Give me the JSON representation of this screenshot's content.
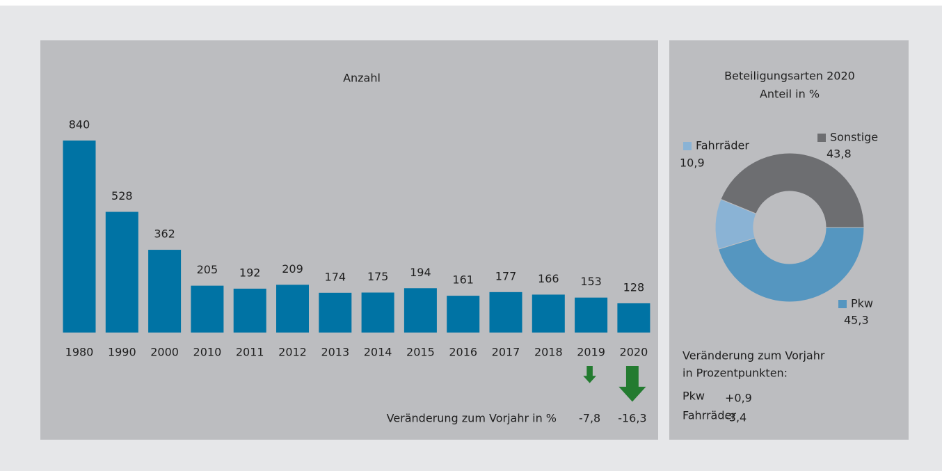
{
  "chart_data": [
    {
      "type": "bar",
      "title": "Anzahl",
      "categories": [
        "1980",
        "1990",
        "2000",
        "2010",
        "2011",
        "2012",
        "2013",
        "2014",
        "2015",
        "2016",
        "2017",
        "2018",
        "2019",
        "2020"
      ],
      "values": [
        840,
        528,
        362,
        205,
        192,
        209,
        174,
        175,
        194,
        161,
        177,
        166,
        153,
        128
      ],
      "color": "#0073a4",
      "change": {
        "label": "Veränderung zum Vorjahr in %",
        "values": [
          -7.8,
          -16.3
        ],
        "value_labels": [
          "-7,8",
          "-16,3"
        ],
        "color": "#237b30"
      }
    },
    {
      "type": "donut",
      "title": "Beteiligungsarten 2020",
      "subtitle": "Anteil in %",
      "categories": [
        "Pkw",
        "Fahrräder",
        "Sonstige"
      ],
      "values": [
        45.3,
        10.9,
        43.8
      ],
      "value_labels": [
        "45,3",
        "10,9",
        "43,8"
      ],
      "colors": [
        "#5596c0",
        "#8ab3d5",
        "#6d6e71"
      ],
      "change": {
        "lines": [
          "Veränderung zum Vorjahr",
          "in Prozentpunkten:"
        ],
        "categories": [
          "Pkw",
          "Fahrräder"
        ],
        "values": [
          0.9,
          -3.4
        ],
        "value_labels": [
          "+0,9",
          "-3,4"
        ]
      }
    }
  ]
}
